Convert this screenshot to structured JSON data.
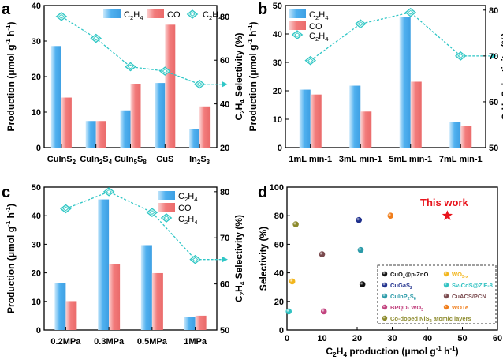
{
  "colors": {
    "bar_c2h4": "#4fb0ef",
    "bar_c2h4_light": "#c9e8fb",
    "bar_co": "#f27b7b",
    "bar_co_light": "#fbd5d5",
    "sel_line": "#2fc6c6",
    "sel_fill": "#d7f6ef",
    "star": "#e8141c",
    "this_work_text": "#e8141c"
  },
  "chart_data": [
    {
      "panel": "a",
      "type": "bar+line",
      "categories": [
        "CuInS2",
        "CuIn2S4",
        "CuIn5S8",
        "CuS",
        "In2S3"
      ],
      "category_labels_main": [
        "CuInS",
        "CuIn",
        "CuIn",
        "CuS",
        "In"
      ],
      "category_labels_sub": [
        [
          "2"
        ],
        [
          "2",
          "4"
        ],
        [
          "5",
          "8"
        ],
        [],
        [
          "2",
          "3"
        ]
      ],
      "ylabel": "Production (μmol g⁻¹ h⁻¹)",
      "ylim": [
        0,
        40
      ],
      "yticks": [
        0,
        10,
        20,
        30,
        40
      ],
      "y2label": "C2H4 Selectivity (%)",
      "y2lim": [
        20,
        85
      ],
      "y2ticks": [
        20,
        40,
        60,
        80
      ],
      "series": [
        {
          "name": "C2H4",
          "type": "bar",
          "values": [
            28.6,
            7.5,
            10.5,
            18.2,
            5.3
          ]
        },
        {
          "name": "CO",
          "type": "bar",
          "values": [
            14.1,
            7.5,
            17.9,
            34.6,
            11.6
          ]
        },
        {
          "name": "C2H4",
          "type": "line",
          "axis": "right",
          "values": [
            80,
            70,
            57,
            55,
            49
          ]
        }
      ],
      "legend": [
        "C2H4",
        "CO",
        "C2H4"
      ],
      "legend_placement": "top"
    },
    {
      "panel": "b",
      "type": "bar+line",
      "categories": [
        "1mL min-1",
        "3mL min-1",
        "5mL min-1",
        "7mL min-1"
      ],
      "ylabel": "Production (μmol g⁻¹ h⁻¹)",
      "ylim": [
        0,
        50
      ],
      "yticks": [
        0,
        10,
        20,
        30,
        40,
        50
      ],
      "y2label": "C2H4 Selectivity (%)",
      "y2lim": [
        50,
        81
      ],
      "y2ticks": [
        50,
        60,
        70,
        80
      ],
      "series": [
        {
          "name": "C2H4",
          "type": "bar",
          "values": [
            20.4,
            21.8,
            46.0,
            8.9
          ]
        },
        {
          "name": "CO",
          "type": "bar",
          "values": [
            18.7,
            12.7,
            23.2,
            7.6
          ]
        },
        {
          "name": "C2H4",
          "type": "line",
          "axis": "right",
          "values": [
            69,
            77,
            79.5,
            70
          ]
        }
      ],
      "legend": [
        "C2H4",
        "CO",
        "C2H4"
      ],
      "legend_placement": "top-left"
    },
    {
      "panel": "c",
      "type": "bar+line",
      "categories": [
        "0.2MPa",
        "0.3MPa",
        "0.5MPa",
        "1MPa"
      ],
      "ylabel": "Production (μmol g⁻¹ h⁻¹)",
      "ylim": [
        0,
        50
      ],
      "yticks": [
        0,
        10,
        20,
        30,
        40,
        50
      ],
      "y2label": "C2H4 Selectivity (%)",
      "y2lim": [
        50,
        81
      ],
      "y2ticks": [
        50,
        60,
        70,
        80
      ],
      "series": [
        {
          "name": "C2H4",
          "type": "bar",
          "values": [
            16.4,
            45.7,
            29.7,
            4.6
          ]
        },
        {
          "name": "CO",
          "type": "bar",
          "values": [
            10.1,
            23.2,
            19.9,
            5.0
          ]
        },
        {
          "name": "C2H4",
          "type": "line",
          "axis": "right",
          "values": [
            76.3,
            80,
            75.5,
            65.3
          ]
        }
      ],
      "legend": [
        "C2H4",
        "CO",
        "C2H4"
      ],
      "legend_placement": "top-right"
    },
    {
      "panel": "d",
      "type": "scatter",
      "xlabel": "C2H4 production (μmol g⁻¹ h⁻¹)",
      "ylabel": "Selectivity (%)",
      "xlim": [
        0,
        60
      ],
      "xticks": [
        0,
        10,
        20,
        30,
        40,
        50,
        60
      ],
      "ylim": [
        0,
        100
      ],
      "yticks": [
        0,
        20,
        40,
        60,
        80,
        100
      ],
      "points": [
        {
          "name": "CuOx@p-ZnO",
          "x": 21.5,
          "y": 32,
          "color": "#111111"
        },
        {
          "name": "WO3-x",
          "x": 1.5,
          "y": 34,
          "color": "#f2b61d"
        },
        {
          "name": "CuGaS2",
          "x": 20.5,
          "y": 77,
          "color": "#1e2f8c"
        },
        {
          "name": "Sv-CdS@ZIF-8",
          "x": 0.5,
          "y": 13,
          "color": "#31c2c2"
        },
        {
          "name": "CuInP2S6",
          "x": 21,
          "y": 56,
          "color": "#2a9aa8"
        },
        {
          "name": "CuACS/PCN",
          "x": 10,
          "y": 53,
          "color": "#7a4a4e"
        },
        {
          "name": "BPQD-WO3",
          "x": 10.5,
          "y": 13,
          "color": "#c2427e"
        },
        {
          "name": "WOTe",
          "x": 29.5,
          "y": 80,
          "color": "#f07d1a"
        },
        {
          "name": "Co-doped NiS2 atomic layers",
          "x": 2.5,
          "y": 74,
          "color": "#8c8a2c"
        }
      ],
      "highlight": {
        "label": "This work",
        "x": 45.7,
        "y": 80,
        "marker": "star"
      },
      "legend_placement": "bottom-right",
      "legend_entries": [
        {
          "main": "CuO",
          "sub": "x",
          "rest": "@p-ZnO",
          "sup": ""
        },
        {
          "main": "WO",
          "sub": "3-x",
          "rest": "",
          "sup": ""
        },
        {
          "main": "CuGaS",
          "sub": "2",
          "rest": "",
          "sup": ""
        },
        {
          "main": "Sv-CdS@ZIF-8",
          "sub": "",
          "rest": "",
          "sup": ""
        },
        {
          "main": "CuInP",
          "sub": "2",
          "rest": "S",
          "sub2": "6"
        },
        {
          "main": "CuACS/PCN",
          "sub": "",
          "rest": "",
          "sup": ""
        },
        {
          "main": "BPQD- WO",
          "sub": "3",
          "rest": "",
          "sup": ""
        },
        {
          "main": "WOTe",
          "sub": "",
          "rest": "",
          "sup": ""
        },
        {
          "main": "Co-doped NiS",
          "sub": "2",
          "rest": " atomic layers",
          "sup": ""
        }
      ]
    }
  ],
  "panel_labels": [
    "a",
    "b",
    "c",
    "d"
  ],
  "legend_text": {
    "c2h4_main": "C",
    "c2h4_sub1": "2",
    "c2h4_h": "H",
    "c2h4_sub2": "4",
    "co": "CO"
  },
  "axis_text": {
    "prod_main": "Production (μmol g",
    "prod_sup1": "-1",
    "prod_h": " h",
    "prod_sup2": "-1",
    "prod_close": ")",
    "sel_c": "C",
    "sel_2": "2",
    "sel_h": "H",
    "sel_4": "4",
    "sel_rest": " Selectivity (%)",
    "min_word": "min",
    "min_sup": "-1",
    "scatter_x_rest": " production (μmol g",
    "scatter_y": "Selectivity (%)"
  },
  "legend_colors_d": [
    "#111111",
    "#f2b61d",
    "#1e2f8c",
    "#31c2c2",
    "#2a9aa8",
    "#7a4a4e",
    "#c2427e",
    "#f07d1a",
    "#8c8a2c"
  ]
}
